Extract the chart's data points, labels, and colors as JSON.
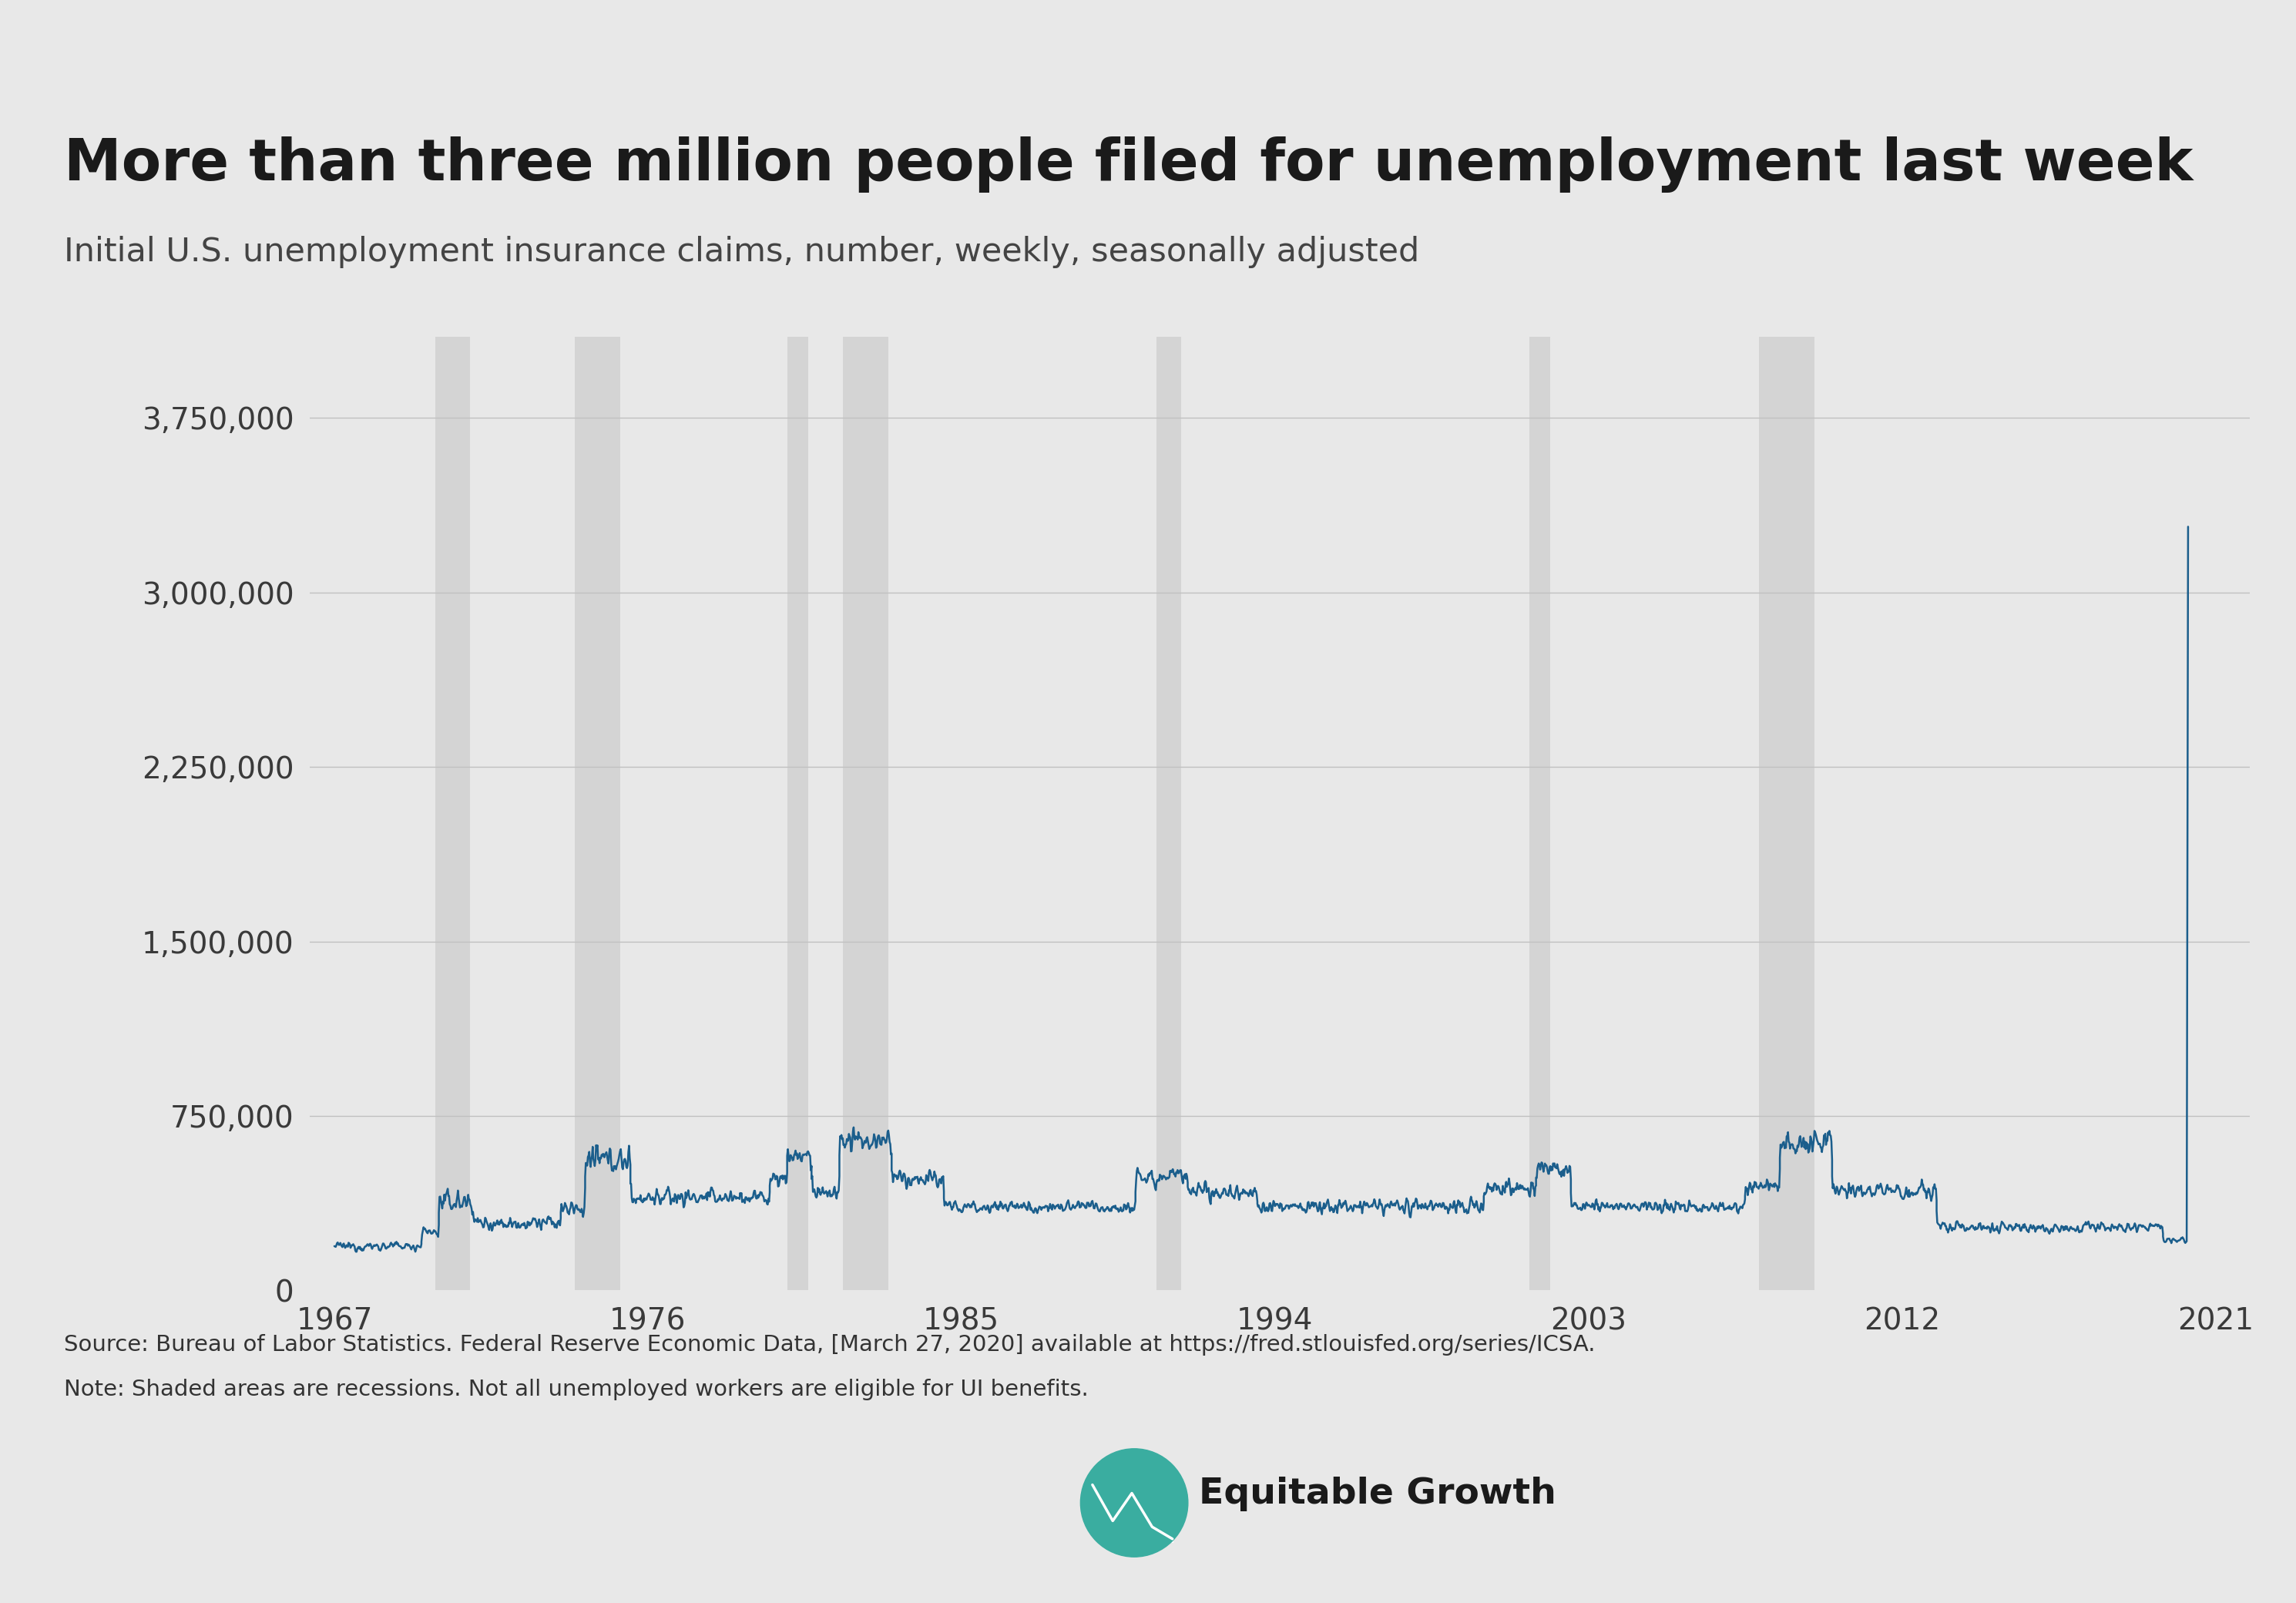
{
  "title": "More than three million people filed for unemployment last week",
  "subtitle": "Initial U.S. unemployment insurance claims, number, weekly, seasonally adjusted",
  "source_line1": "Source: Bureau of Labor Statistics. Federal Reserve Economic Data, [March 27, 2020] available at https://fred.stlouisfed.org/series/ICSA.",
  "source_line2": "Note: Shaded areas are recessions. Not all unemployed workers are eligible for UI benefits.",
  "background_color": "#e8e8e8",
  "line_color": "#1b5e8c",
  "recession_color": "#d4d4d4",
  "grid_color": "#c0c0c0",
  "ytick_labels": [
    "0",
    "750,000",
    "1,500,000",
    "2,250,000",
    "3,000,000",
    "3,750,000"
  ],
  "ytick_values": [
    0,
    750000,
    1500000,
    2250000,
    3000000,
    3750000
  ],
  "xtick_labels": [
    "1967",
    "1976",
    "1985",
    "1994",
    "2003",
    "2012",
    "2021"
  ],
  "xtick_values": [
    1967,
    1976,
    1985,
    1994,
    2003,
    2012,
    2021
  ],
  "ylim": [
    0,
    4100000
  ],
  "xlim_start": 1966.3,
  "xlim_end": 2022.0,
  "recession_bands": [
    [
      1969.9,
      1970.9
    ],
    [
      1973.9,
      1975.2
    ],
    [
      1980.0,
      1980.6
    ],
    [
      1981.6,
      1982.9
    ],
    [
      1990.6,
      1991.3
    ],
    [
      2001.3,
      2001.9
    ],
    [
      2007.9,
      2009.5
    ]
  ],
  "segments": [
    [
      1967.0,
      1969.5,
      190000,
      20000,
      0.0
    ],
    [
      1969.5,
      1970.0,
      250000,
      30000,
      0.0
    ],
    [
      1970.0,
      1971.0,
      380000,
      50000,
      0.0
    ],
    [
      1971.0,
      1973.5,
      290000,
      35000,
      0.0
    ],
    [
      1973.5,
      1974.2,
      350000,
      40000,
      0.0
    ],
    [
      1974.2,
      1975.5,
      560000,
      60000,
      0.0
    ],
    [
      1975.5,
      1979.5,
      400000,
      45000,
      0.0
    ],
    [
      1979.5,
      1980.0,
      480000,
      40000,
      0.0
    ],
    [
      1980.0,
      1980.7,
      580000,
      55000,
      0.0
    ],
    [
      1980.7,
      1981.5,
      420000,
      40000,
      0.0
    ],
    [
      1981.5,
      1983.0,
      640000,
      55000,
      0.0
    ],
    [
      1983.0,
      1984.5,
      480000,
      45000,
      0.0
    ],
    [
      1984.5,
      1990.0,
      360000,
      30000,
      0.0
    ],
    [
      1990.0,
      1991.5,
      490000,
      50000,
      0.0
    ],
    [
      1991.5,
      1993.5,
      420000,
      35000,
      0.0
    ],
    [
      1993.5,
      2000.0,
      360000,
      35000,
      0.0
    ],
    [
      2000.0,
      2001.5,
      440000,
      45000,
      0.0
    ],
    [
      2001.5,
      2002.5,
      520000,
      45000,
      0.0
    ],
    [
      2002.5,
      2007.5,
      360000,
      30000,
      0.0
    ],
    [
      2007.5,
      2008.5,
      450000,
      40000,
      0.0
    ],
    [
      2008.5,
      2010.0,
      630000,
      70000,
      0.0
    ],
    [
      2010.0,
      2013.0,
      430000,
      40000,
      0.0
    ],
    [
      2013.0,
      2019.5,
      270000,
      25000,
      0.0
    ],
    [
      2019.5,
      2020.18,
      215000,
      15000,
      0.0
    ]
  ],
  "covid_spike_year": 2020.22,
  "covid_spike_value": 3283000,
  "pre_covid_year": 2020.18,
  "pre_covid_value": 211000
}
